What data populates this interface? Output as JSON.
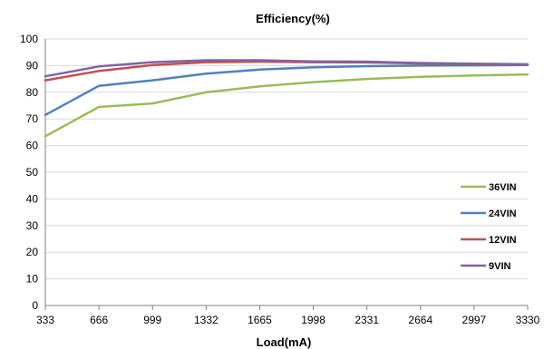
{
  "chart_data": {
    "type": "line",
    "title": "Efficiency(%)",
    "xlabel": "Load(mA)",
    "ylabel": "",
    "x": [
      333,
      666,
      999,
      1332,
      1665,
      1998,
      2331,
      2664,
      2997,
      3330
    ],
    "xlim": [
      333,
      3330
    ],
    "ylim": [
      0,
      100
    ],
    "yticks": [
      0,
      10,
      20,
      30,
      40,
      50,
      60,
      70,
      80,
      90,
      100
    ],
    "grid": "horizontal",
    "legend_position": "right",
    "series": [
      {
        "name": "36VIN",
        "color": "#9bbb59",
        "values": [
          63.5,
          74.5,
          75.8,
          80.0,
          82.2,
          83.8,
          85.0,
          85.8,
          86.3,
          86.7
        ]
      },
      {
        "name": "24VIN",
        "color": "#4f81bd",
        "values": [
          71.5,
          82.4,
          84.5,
          87.0,
          88.5,
          89.4,
          89.8,
          90.0,
          90.1,
          90.2
        ]
      },
      {
        "name": "12VIN",
        "color": "#c0504d",
        "values": [
          84.5,
          88.0,
          90.2,
          91.3,
          91.5,
          91.3,
          91.2,
          90.8,
          90.6,
          90.4
        ]
      },
      {
        "name": "9VIN",
        "color": "#8064a2",
        "values": [
          86.0,
          89.7,
          91.3,
          92.0,
          92.0,
          91.6,
          91.5,
          91.0,
          90.7,
          90.5
        ]
      }
    ]
  }
}
